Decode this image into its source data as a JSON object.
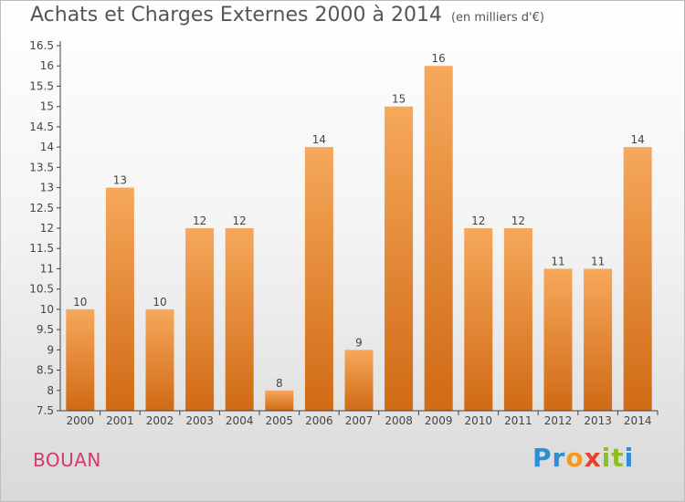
{
  "title": "Achats et Charges Externes 2000 à 2014",
  "subtitle": "(en milliers d'€)",
  "location": "BOUAN",
  "logo": {
    "text": "Proxiti",
    "letters": [
      "P",
      "r",
      "o",
      "x",
      "i",
      "t",
      "i"
    ],
    "colors": [
      "#2b8fd6",
      "#2b8fd6",
      "#f29a1f",
      "#e6422e",
      "#8cbf26",
      "#8cbf26",
      "#2b8fd6"
    ]
  },
  "colors": {
    "bar": "#f08b2c",
    "bar_light": "#f6a85b",
    "bar_dark": "#d06a15",
    "axis": "#444444"
  },
  "chart_data": {
    "type": "bar",
    "categories": [
      "2000",
      "2001",
      "2002",
      "2003",
      "2004",
      "2005",
      "2006",
      "2007",
      "2008",
      "2009",
      "2010",
      "2011",
      "2012",
      "2013",
      "2014"
    ],
    "values": [
      10,
      13,
      10,
      12,
      12,
      8,
      14,
      9,
      15,
      16,
      12,
      12,
      11,
      11,
      14
    ],
    "data_labels": [
      "10",
      "13",
      "10",
      "12",
      "12",
      "8",
      "14",
      "9",
      "15",
      "16",
      "12",
      "12",
      "11",
      "11",
      "14"
    ],
    "yticks": [
      "7.5",
      "8",
      "8.5",
      "9",
      "9.5",
      "10",
      "10.5",
      "11",
      "11.5",
      "12",
      "12.5",
      "13",
      "13.5",
      "14",
      "14.5",
      "15",
      "15.5",
      "16",
      "16.5"
    ],
    "ylim": [
      7.5,
      16.5
    ],
    "grid": false,
    "xlabel": "",
    "ylabel": ""
  }
}
